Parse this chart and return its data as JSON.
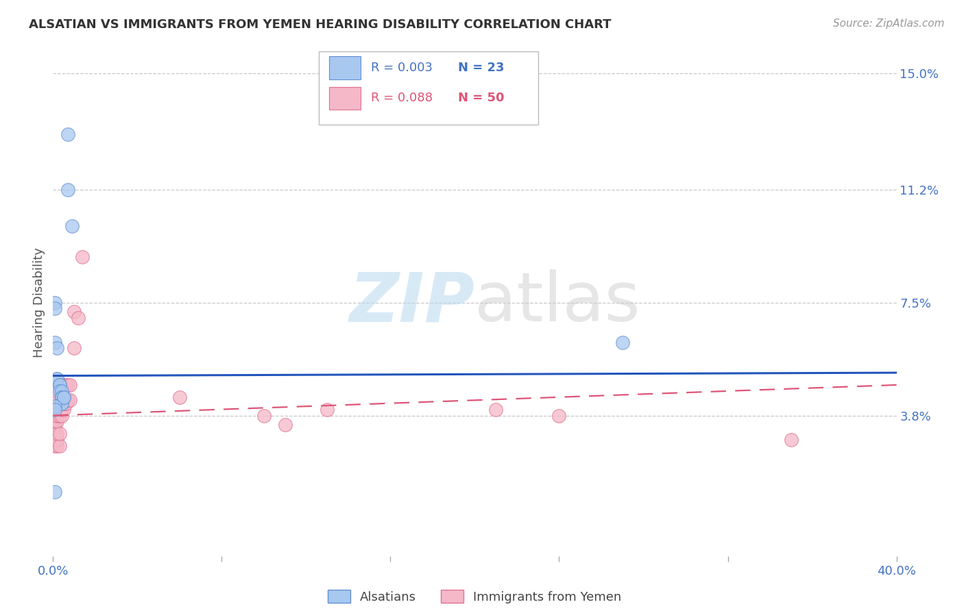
{
  "title": "ALSATIAN VS IMMIGRANTS FROM YEMEN HEARING DISABILITY CORRELATION CHART",
  "source": "Source: ZipAtlas.com",
  "ylabel": "Hearing Disability",
  "xlim": [
    0.0,
    0.4
  ],
  "ylim": [
    -0.008,
    0.158
  ],
  "yticks_right": [
    0.038,
    0.075,
    0.112,
    0.15
  ],
  "ytick_labels_right": [
    "3.8%",
    "7.5%",
    "11.2%",
    "15.0%"
  ],
  "grid_color": "#c8c8c8",
  "background_color": "#ffffff",
  "watermark_zip": "ZIP",
  "watermark_atlas": "atlas",
  "series1_label": "Alsatians",
  "series2_label": "Immigrants from Yemen",
  "series1_color": "#a8c8f0",
  "series2_color": "#f5b8c8",
  "series1_edge": "#6090d0",
  "series2_edge": "#e07090",
  "trend1_color": "#2255bb",
  "trend2_color": "#dd5577",
  "legend_R1": "R = 0.003",
  "legend_N1": "N = 23",
  "legend_R2": "R = 0.088",
  "legend_N2": "N = 50",
  "trend1_y0": 0.051,
  "trend1_y1": 0.052,
  "trend2_y0": 0.038,
  "trend2_y1": 0.048,
  "alsatians_x": [
    0.007,
    0.007,
    0.009,
    0.001,
    0.001,
    0.001,
    0.002,
    0.002,
    0.002,
    0.003,
    0.003,
    0.003,
    0.004,
    0.004,
    0.004,
    0.004,
    0.004,
    0.005,
    0.005,
    0.001,
    0.001,
    0.27,
    0.001
  ],
  "alsatians_y": [
    0.13,
    0.112,
    0.1,
    0.075,
    0.073,
    0.062,
    0.06,
    0.05,
    0.05,
    0.048,
    0.048,
    0.046,
    0.046,
    0.044,
    0.044,
    0.042,
    0.042,
    0.044,
    0.044,
    0.041,
    0.04,
    0.062,
    0.013
  ],
  "yemen_x": [
    0.001,
    0.001,
    0.001,
    0.001,
    0.001,
    0.001,
    0.001,
    0.001,
    0.001,
    0.001,
    0.001,
    0.001,
    0.002,
    0.002,
    0.002,
    0.002,
    0.002,
    0.002,
    0.002,
    0.002,
    0.003,
    0.003,
    0.003,
    0.003,
    0.004,
    0.004,
    0.004,
    0.004,
    0.004,
    0.005,
    0.005,
    0.005,
    0.005,
    0.006,
    0.006,
    0.007,
    0.007,
    0.008,
    0.008,
    0.01,
    0.01,
    0.012,
    0.014,
    0.06,
    0.1,
    0.11,
    0.13,
    0.21,
    0.24,
    0.35
  ],
  "yemen_y": [
    0.028,
    0.03,
    0.032,
    0.034,
    0.035,
    0.036,
    0.037,
    0.038,
    0.039,
    0.04,
    0.041,
    0.042,
    0.028,
    0.03,
    0.032,
    0.036,
    0.038,
    0.04,
    0.043,
    0.046,
    0.028,
    0.032,
    0.038,
    0.04,
    0.038,
    0.04,
    0.043,
    0.046,
    0.048,
    0.04,
    0.042,
    0.044,
    0.048,
    0.042,
    0.048,
    0.043,
    0.048,
    0.043,
    0.048,
    0.06,
    0.072,
    0.07,
    0.09,
    0.044,
    0.038,
    0.035,
    0.04,
    0.04,
    0.038,
    0.03
  ]
}
